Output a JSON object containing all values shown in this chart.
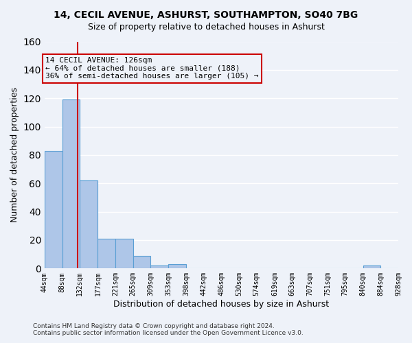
{
  "title_line1": "14, CECIL AVENUE, ASHURST, SOUTHAMPTON, SO40 7BG",
  "title_line2": "Size of property relative to detached houses in Ashurst",
  "xlabel": "Distribution of detached houses by size in Ashurst",
  "ylabel": "Number of detached properties",
  "bar_edges": [
    44,
    88,
    132,
    177,
    221,
    265,
    309,
    353,
    398,
    442,
    486,
    530,
    574,
    619,
    663,
    707,
    751,
    795,
    840,
    884,
    928
  ],
  "bar_heights": [
    83,
    119,
    62,
    21,
    21,
    9,
    2,
    3,
    0,
    0,
    0,
    0,
    0,
    0,
    0,
    0,
    0,
    0,
    2,
    0
  ],
  "bar_color": "#aec6e8",
  "bar_edge_color": "#5a9fd4",
  "property_line_x": 126,
  "property_line_color": "#cc0000",
  "annotation_title": "14 CECIL AVENUE: 126sqm",
  "annotation_line1": "← 64% of detached houses are smaller (188)",
  "annotation_line2": "36% of semi-detached houses are larger (105) →",
  "annotation_box_color": "#cc0000",
  "ylim": [
    0,
    160
  ],
  "yticks": [
    0,
    20,
    40,
    60,
    80,
    100,
    120,
    140,
    160
  ],
  "tick_labels": [
    "44sqm",
    "88sqm",
    "132sqm",
    "177sqm",
    "221sqm",
    "265sqm",
    "309sqm",
    "353sqm",
    "398sqm",
    "442sqm",
    "486sqm",
    "530sqm",
    "574sqm",
    "619sqm",
    "663sqm",
    "707sqm",
    "751sqm",
    "795sqm",
    "840sqm",
    "884sqm",
    "928sqm"
  ],
  "footer_line1": "Contains HM Land Registry data © Crown copyright and database right 2024.",
  "footer_line2": "Contains public sector information licensed under the Open Government Licence v3.0.",
  "background_color": "#eef2f9",
  "grid_color": "#ffffff"
}
